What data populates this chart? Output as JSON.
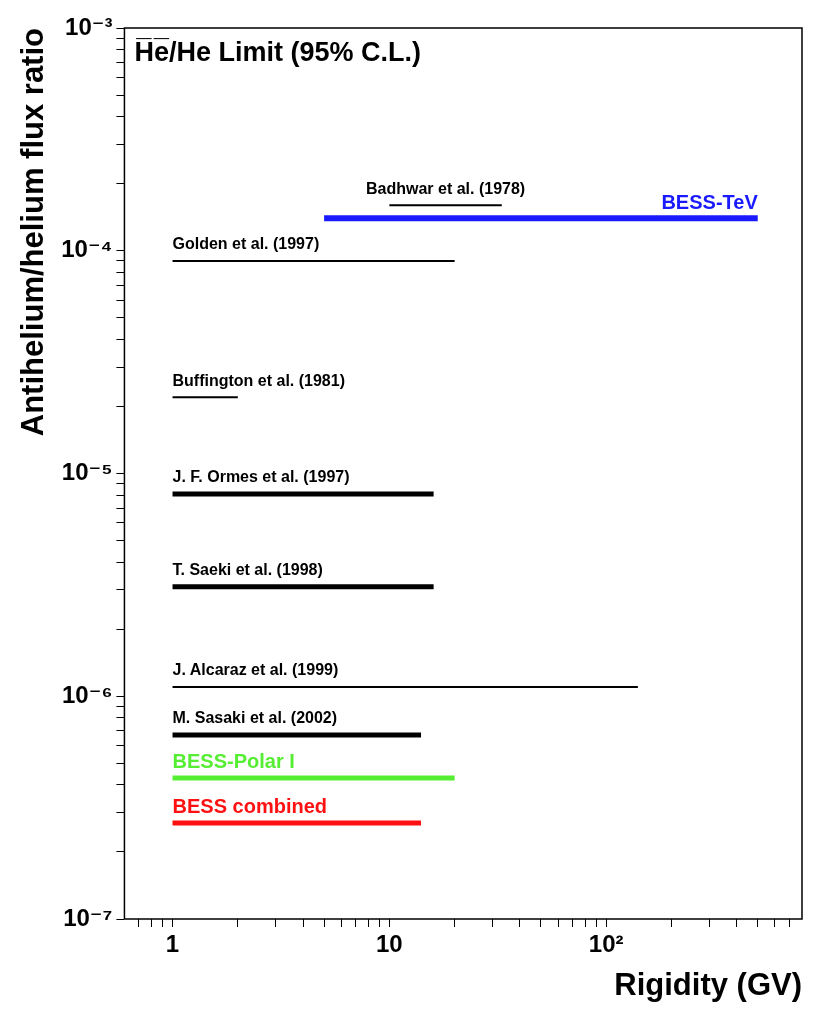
{
  "chart_data": {
    "type": "line",
    "title": "H̅e̅/He Limit (95% C.L.)",
    "xlabel": "Rigidity (GV)",
    "ylabel": "Antihelium/helium flux ratio",
    "log": "xy",
    "marker": "none",
    "line_style": "solid",
    "xlim": [
      0.6,
      800
    ],
    "ylim": [
      1e-07,
      0.001
    ],
    "xticks": [
      {
        "value": 0.7,
        "label": null
      },
      {
        "value": 0.8,
        "label": null
      },
      {
        "value": 0.9,
        "label": null
      },
      1,
      {
        "value": 2,
        "label": null
      },
      {
        "value": 3,
        "label": null
      },
      {
        "value": 4,
        "label": null
      },
      {
        "value": 5,
        "label": null
      },
      {
        "value": 6,
        "label": null
      },
      {
        "value": 7,
        "label": null
      },
      {
        "value": 8,
        "label": null
      },
      {
        "value": 9,
        "label": null
      },
      10,
      {
        "value": 20,
        "label": null
      },
      {
        "value": 30,
        "label": null
      },
      {
        "value": 40,
        "label": null
      },
      {
        "value": 50,
        "label": null
      },
      {
        "value": 60,
        "label": null
      },
      {
        "value": 70,
        "label": null
      },
      {
        "value": 80,
        "label": null
      },
      {
        "value": 90,
        "label": null
      },
      {
        "value": 100,
        "label": "10²"
      },
      {
        "value": 200,
        "label": null
      },
      {
        "value": 300,
        "label": null
      },
      {
        "value": 400,
        "label": null
      },
      {
        "value": 500,
        "label": null
      },
      {
        "value": 600,
        "label": null
      },
      {
        "value": 700,
        "label": null
      }
    ],
    "yticks": [
      {
        "value": 1e-07,
        "label": "10⁻⁷"
      },
      {
        "value": 2e-07,
        "label": null
      },
      {
        "value": 3e-07,
        "label": null
      },
      {
        "value": 4e-07,
        "label": null
      },
      {
        "value": 5e-07,
        "label": null
      },
      {
        "value": 6e-07,
        "label": null
      },
      {
        "value": 7e-07,
        "label": null
      },
      {
        "value": 8e-07,
        "label": null
      },
      {
        "value": 9e-07,
        "label": null
      },
      {
        "value": 1e-06,
        "label": "10⁻⁶"
      },
      {
        "value": 2e-06,
        "label": null
      },
      {
        "value": 3e-06,
        "label": null
      },
      {
        "value": 4e-06,
        "label": null
      },
      {
        "value": 5e-06,
        "label": null
      },
      {
        "value": 6e-06,
        "label": null
      },
      {
        "value": 7e-06,
        "label": null
      },
      {
        "value": 8e-06,
        "label": null
      },
      {
        "value": 9e-06,
        "label": null
      },
      {
        "value": 1e-05,
        "label": "10⁻⁵"
      },
      {
        "value": 2e-05,
        "label": null
      },
      {
        "value": 3e-05,
        "label": null
      },
      {
        "value": 4e-05,
        "label": null
      },
      {
        "value": 5e-05,
        "label": null
      },
      {
        "value": 6e-05,
        "label": null
      },
      {
        "value": 7e-05,
        "label": null
      },
      {
        "value": 8e-05,
        "label": null
      },
      {
        "value": 9e-05,
        "label": null
      },
      {
        "value": 0.0001,
        "label": "10⁻⁴"
      },
      {
        "value": 0.0002,
        "label": null
      },
      {
        "value": 0.0003,
        "label": null
      },
      {
        "value": 0.0004,
        "label": null
      },
      {
        "value": 0.0005,
        "label": null
      },
      {
        "value": 0.0006,
        "label": null
      },
      {
        "value": 0.0007,
        "label": null
      },
      {
        "value": 0.0008,
        "label": null
      },
      {
        "value": 0.0009,
        "label": null
      },
      {
        "value": 0.001,
        "label": "10⁻³"
      }
    ],
    "series": [
      {
        "name": "Badhwar et al. (1978)",
        "color": "#000000",
        "x": [
          10,
          33
        ],
        "values": [
          0.00016,
          0.00016
        ]
      },
      {
        "name": "BESS-TeV",
        "color": "#1a1aff",
        "x": [
          5,
          500
        ],
        "values": [
          0.00014,
          0.00014
        ]
      },
      {
        "name": "Golden et al. (1997)",
        "color": "#000000",
        "x": [
          1,
          20
        ],
        "values": [
          9e-05,
          9e-05
        ]
      },
      {
        "name": "Buffington et al. (1981)",
        "color": "#000000",
        "x": [
          1,
          2
        ],
        "values": [
          2.2e-05,
          2.2e-05
        ]
      },
      {
        "name": "J. F. Ormes et al. (1997)",
        "color": "#000000",
        "x": [
          1,
          16
        ],
        "values": [
          8.1e-06,
          8.1e-06
        ]
      },
      {
        "name": "T. Saeki et al. (1998)",
        "color": "#000000",
        "x": [
          1,
          16
        ],
        "values": [
          3.1e-06,
          3.1e-06
        ]
      },
      {
        "name": "J. Alcaraz et al. (1999)",
        "color": "#000000",
        "x": [
          1,
          140
        ],
        "values": [
          1.1e-06,
          1.1e-06
        ]
      },
      {
        "name": "M. Sasaki et al. (2002)",
        "color": "#000000",
        "x": [
          1,
          14
        ],
        "values": [
          6.7e-07,
          6.7e-07
        ]
      },
      {
        "name": "BESS-Polar I",
        "color": "#55ee33",
        "x": [
          1,
          20
        ],
        "values": [
          4.3e-07,
          4.3e-07
        ]
      },
      {
        "name": "BESS combined",
        "color": "#ff1111",
        "x": [
          1,
          14
        ],
        "values": [
          2.7e-07,
          2.7e-07
        ]
      }
    ]
  }
}
